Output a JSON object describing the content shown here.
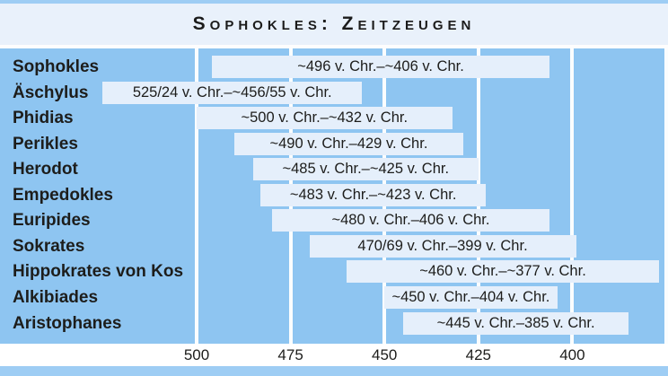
{
  "title": "Sophokles: Zeitzeugen",
  "colors": {
    "chart_background": "#8ec5f1",
    "bar_fill": "#e5effb",
    "title_background": "#e9f1fb",
    "border_strip": "#9ecdf4",
    "axis_background": "#ffffff",
    "gridline": "#fbfdfe",
    "text": "#1d1d1b"
  },
  "chart_data": {
    "type": "bar",
    "variant": "horizontal-timeline",
    "title": "Sophokles: Zeitzeugen",
    "xlabel": "",
    "ylabel": "",
    "x_axis": {
      "unit": "v. Chr.",
      "direction": "descending",
      "tick_labels": [
        "500",
        "475",
        "450",
        "425",
        "400"
      ],
      "tick_years": [
        500,
        475,
        450,
        425,
        400
      ],
      "gridline_years": [
        500,
        475,
        450,
        425,
        400,
        375
      ],
      "range": [
        527,
        374
      ],
      "grid": true
    },
    "legend": null,
    "rows": [
      {
        "name": "Sophokles",
        "start": 496,
        "end": 406,
        "label": "~496 v. Chr.–~406 v. Chr."
      },
      {
        "name": "Äschylus",
        "start": 525,
        "end": 456,
        "label": "525/24 v. Chr.–~456/55 v. Chr."
      },
      {
        "name": "Phidias",
        "start": 500,
        "end": 432,
        "label": "~500 v. Chr.–~432 v. Chr."
      },
      {
        "name": "Perikles",
        "start": 490,
        "end": 429,
        "label": "~490 v. Chr.–429 v. Chr."
      },
      {
        "name": "Herodot",
        "start": 485,
        "end": 425,
        "label": "~485 v. Chr.–~425 v. Chr."
      },
      {
        "name": "Empedokles",
        "start": 483,
        "end": 423,
        "label": "~483 v. Chr.–~423 v. Chr."
      },
      {
        "name": "Euripides",
        "start": 480,
        "end": 406,
        "label": "~480 v. Chr.–406 v. Chr."
      },
      {
        "name": "Sokrates",
        "start": 470,
        "end": 399,
        "label": "470/69 v. Chr.–399 v. Chr."
      },
      {
        "name": "Hippokrates von Kos",
        "start": 460,
        "end": 377,
        "label": "~460 v. Chr.–~377 v. Chr."
      },
      {
        "name": "Alkibiades",
        "start": 450,
        "end": 404,
        "label": "~450 v. Chr.–404 v. Chr."
      },
      {
        "name": "Aristophanes",
        "start": 445,
        "end": 385,
        "label": "~445 v. Chr.–385 v. Chr."
      }
    ]
  }
}
